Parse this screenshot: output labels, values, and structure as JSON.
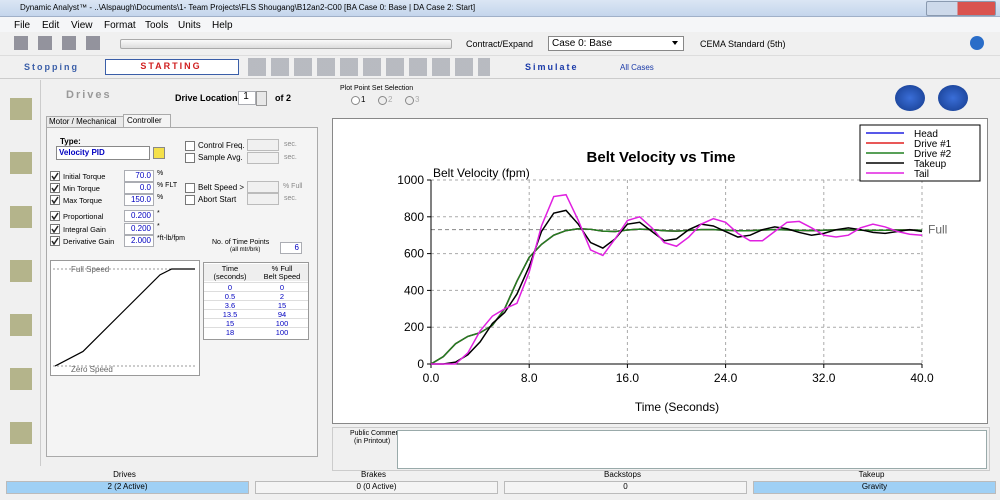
{
  "window": {
    "title": "Dynamic Analyst™ - ..\\Alspaugh\\Documents\\1- Team Projects\\FLS Shougang\\B12an2-C00 [BA Case 0: Base | DA Case 2: Start]"
  },
  "menu": [
    "File",
    "Edit",
    "View",
    "Format",
    "Tools",
    "Units",
    "Help"
  ],
  "toolbar": {
    "contract_expand": "Contract/Expand",
    "case": "Case 0: Base",
    "standard": "CEMA Standard (5th)"
  },
  "modebar": {
    "stopping": "Stopping",
    "starting": "STARTING",
    "simulate": "Simulate",
    "all_cases": "All Cases"
  },
  "drives_panel": {
    "title": "Drives",
    "location_label": "Drive Location",
    "location": "1",
    "of": "of 2",
    "tabs": [
      "Motor / Mechanical",
      "Controller"
    ],
    "type_label": "Type:",
    "type": "Velocity PID",
    "control_freq": "Control Freq.",
    "sample_avg": "Sample Avg.",
    "sec": "sec.",
    "fields": [
      {
        "label": "Initial Torque",
        "value": "70.0",
        "unit": "%"
      },
      {
        "label": "Min Torque",
        "value": "0.0",
        "unit": "% FLT"
      },
      {
        "label": "Max Torque",
        "value": "150.0",
        "unit": "%"
      },
      {
        "label": "Proportional",
        "value": "0.200",
        "unit": "*"
      },
      {
        "label": "Integral Gain",
        "value": "0.200",
        "unit": "*"
      },
      {
        "label": "Derivative Gain",
        "value": "2.000",
        "unit": "*ft-lb/fpm"
      }
    ],
    "belt_speed": "Belt Speed >",
    "pct_full": "% Full",
    "abort_start": "Abort Start",
    "time_points_label": "No. of Time Points",
    "time_points_sub": "(all mtr/brk)",
    "time_points": "6",
    "full_speed": "Full Speed",
    "zero_speed": "Zero Speed",
    "table": {
      "headers": [
        [
          "Time",
          "(seconds)"
        ],
        [
          "% Full",
          "Belt Speed"
        ]
      ],
      "rows": [
        [
          0,
          0
        ],
        [
          0.5,
          2
        ],
        [
          3.6,
          15
        ],
        [
          13.5,
          94
        ],
        [
          15,
          100
        ],
        [
          18,
          100
        ]
      ]
    }
  },
  "plot_point": {
    "title": "Plot Point Set Selection",
    "options": [
      "1",
      "2",
      "3"
    ]
  },
  "chart_data": {
    "type": "line",
    "title": "Belt Velocity vs Time",
    "y_label": "Belt Velocity (fpm)",
    "x_label": "Time (Seconds)",
    "xlim": [
      0,
      40
    ],
    "ylim": [
      0,
      1000
    ],
    "xticks": [
      {
        "value": 0,
        "label": "0.0"
      },
      {
        "value": 8,
        "label": "8.0"
      },
      {
        "value": 16,
        "label": "16.0"
      },
      {
        "value": 24,
        "label": "24.0"
      },
      {
        "value": 32,
        "label": "32.0"
      },
      {
        "value": 40,
        "label": "40.0"
      }
    ],
    "yticks": [
      0,
      200,
      400,
      600,
      800,
      1000
    ],
    "grid": true,
    "legend": "upper right",
    "reference_line": {
      "value": 730,
      "label": "Full"
    },
    "x": [
      0,
      1,
      2,
      3,
      4,
      5,
      6,
      7,
      8,
      9,
      10,
      11,
      12,
      13,
      14,
      15,
      16,
      17,
      18,
      19,
      20,
      21,
      22,
      23,
      24,
      25,
      26,
      27,
      28,
      29,
      30,
      31,
      32,
      33,
      34,
      35,
      36,
      37,
      38,
      39,
      40
    ],
    "series": [
      {
        "name": "Head",
        "color": "#2020e0",
        "values": [
          0,
          40,
          110,
          150,
          170,
          210,
          300,
          450,
          580,
          650,
          700,
          725,
          735,
          732,
          722,
          720,
          728,
          733,
          730,
          724,
          722,
          726,
          730,
          730,
          727,
          724,
          725,
          728,
          730,
          729,
          726,
          725,
          727,
          729,
          729,
          727,
          726,
          727,
          728,
          728,
          727
        ]
      },
      {
        "name": "Drive #1",
        "color": "#e02020",
        "values": [
          0,
          40,
          110,
          150,
          170,
          210,
          300,
          450,
          580,
          650,
          700,
          725,
          735,
          732,
          722,
          720,
          728,
          733,
          730,
          724,
          722,
          726,
          730,
          730,
          727,
          724,
          725,
          728,
          730,
          729,
          726,
          725,
          727,
          729,
          729,
          727,
          726,
          727,
          728,
          728,
          727
        ]
      },
      {
        "name": "Drive #2",
        "color": "#208020",
        "values": [
          0,
          40,
          110,
          150,
          170,
          210,
          300,
          450,
          580,
          650,
          700,
          725,
          735,
          732,
          722,
          720,
          728,
          733,
          730,
          724,
          722,
          726,
          730,
          730,
          727,
          724,
          725,
          728,
          730,
          729,
          726,
          725,
          727,
          729,
          729,
          727,
          726,
          727,
          728,
          728,
          727
        ]
      },
      {
        "name": "Takeup",
        "color": "#000000",
        "values": [
          0,
          0,
          10,
          50,
          120,
          220,
          280,
          380,
          530,
          720,
          820,
          835,
          760,
          660,
          630,
          680,
          760,
          770,
          720,
          670,
          680,
          730,
          760,
          750,
          720,
          690,
          700,
          730,
          745,
          735,
          715,
          700,
          710,
          730,
          740,
          730,
          715,
          710,
          720,
          730,
          720
        ]
      },
      {
        "name": "Tail",
        "color": "#e020e0",
        "values": [
          0,
          0,
          0,
          60,
          180,
          260,
          300,
          330,
          500,
          750,
          910,
          920,
          780,
          620,
          590,
          680,
          780,
          800,
          740,
          660,
          640,
          690,
          760,
          790,
          770,
          710,
          670,
          670,
          720,
          770,
          775,
          740,
          700,
          690,
          700,
          740,
          760,
          745,
          720,
          705,
          700
        ]
      }
    ]
  },
  "comments": {
    "label": "Public Comments",
    "sub": "(in Printout)"
  },
  "status": [
    {
      "header": "Drives",
      "value": "2 (2 Active)"
    },
    {
      "header": "Brakes",
      "value": "0 (0 Active)"
    },
    {
      "header": "Backstops",
      "value": "0"
    },
    {
      "header": "Takeup",
      "value": "Gravity"
    }
  ]
}
